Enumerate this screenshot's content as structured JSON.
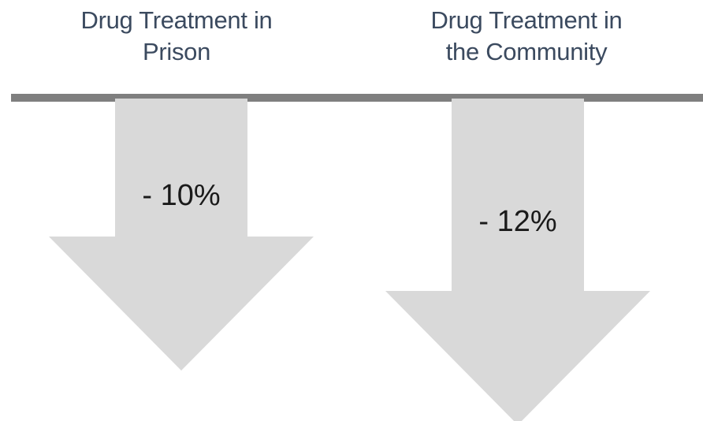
{
  "chart_data": {
    "type": "bar",
    "orientation": "downward-arrows",
    "categories": [
      [
        "Drug Treatment in",
        "Prison"
      ],
      [
        "Drug Treatment in",
        "the Community"
      ]
    ],
    "values": [
      -10,
      -12
    ],
    "value_labels": [
      "- 10%",
      "- 12%"
    ],
    "unit": "%",
    "title": "",
    "xlabel": "",
    "ylabel": ""
  },
  "colors": {
    "baseline": "#7f7f7f",
    "arrow_fill": "#d9d9d9",
    "category_text": "#3b4a5f",
    "value_text": "#1a1a1a",
    "background": "#ffffff"
  }
}
